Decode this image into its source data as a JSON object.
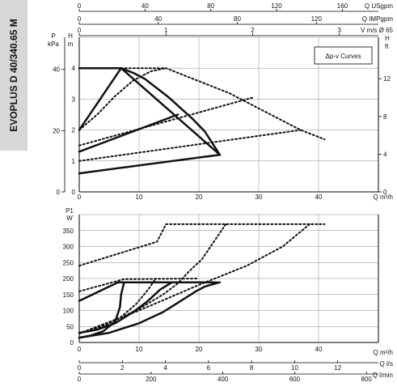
{
  "sidebar_label": "EVOPLUS D 40/340.65 M",
  "chart_data": [
    {
      "type": "line",
      "name": "head-curves",
      "title": "Δp-v Curves",
      "top_axes": [
        {
          "label": "Q USgpm",
          "ticks": [
            0,
            40,
            80,
            120,
            160
          ],
          "range": [
            0,
            181.9
          ]
        },
        {
          "label": "Q IMPgpm",
          "ticks": [
            0,
            40,
            80,
            120
          ],
          "range": [
            0,
            151.4
          ]
        },
        {
          "label": "V m/s Ø 65",
          "ticks": [
            0,
            1,
            2,
            3
          ],
          "range": [
            0,
            3.45
          ]
        }
      ],
      "xlabel": "Q m³/h",
      "xlim": [
        0,
        50
      ],
      "x_ticks": [
        0,
        10,
        20,
        30,
        40
      ],
      "left_axes": [
        {
          "label": "P kPa",
          "ticks": [
            0,
            20,
            40
          ]
        },
        {
          "label": "H m",
          "ticks": [
            0,
            1,
            2,
            3,
            4
          ]
        }
      ],
      "ylim": [
        0,
        5
      ],
      "right_axis": {
        "label": "H ft",
        "ticks": [
          0,
          4,
          8,
          12
        ],
        "range": [
          0,
          16.4
        ]
      },
      "grid": true,
      "series": [
        {
          "style": "solid",
          "points": [
            [
              0,
              4
            ],
            [
              7,
              4
            ],
            [
              23.5,
              1.2
            ],
            [
              0,
              0.6
            ]
          ]
        },
        {
          "style": "solid",
          "points": [
            [
              7,
              4
            ],
            [
              0,
              2
            ]
          ]
        },
        {
          "style": "solid",
          "points": [
            [
              0,
              1.3
            ],
            [
              16.5,
              2.5
            ]
          ]
        },
        {
          "style": "solid",
          "points": [
            [
              7,
              4
            ],
            [
              9,
              3.85
            ],
            [
              11,
              3.65
            ],
            [
              13,
              3.35
            ],
            [
              15,
              3.05
            ],
            [
              17,
              2.7
            ],
            [
              19,
              2.35
            ],
            [
              21,
              1.95
            ],
            [
              23.5,
              1.2
            ]
          ]
        },
        {
          "style": "dotted",
          "points": [
            [
              0,
              2
            ],
            [
              3,
              2.5
            ],
            [
              6,
              3.1
            ],
            [
              9,
              3.6
            ],
            [
              12,
              3.9
            ],
            [
              14.5,
              4
            ]
          ]
        },
        {
          "style": "dotted",
          "points": [
            [
              7,
              4
            ],
            [
              14.5,
              4
            ],
            [
              25,
              3.2
            ],
            [
              37,
              2
            ],
            [
              41,
              1.7
            ]
          ]
        },
        {
          "style": "dotted",
          "points": [
            [
              0,
              1.5
            ],
            [
              29,
              3.05
            ]
          ]
        },
        {
          "style": "dotted",
          "points": [
            [
              0,
              1
            ],
            [
              37,
              2
            ]
          ]
        }
      ]
    },
    {
      "type": "line",
      "name": "power-curves",
      "xlabel": "Q m³/h",
      "xlim": [
        0,
        50
      ],
      "x_ticks": [
        0,
        10,
        20,
        30,
        40
      ],
      "ylabel": "P1 W",
      "ylim": [
        0,
        400
      ],
      "y_ticks": [
        0,
        50,
        100,
        150,
        200,
        250,
        300,
        350
      ],
      "bottom_axes": [
        {
          "label": "Q l/s",
          "ticks": [
            0,
            2,
            4,
            6,
            8,
            10,
            12
          ],
          "range": [
            0,
            13.89
          ]
        },
        {
          "label": "Q l/min",
          "ticks": [
            0,
            200,
            400,
            600,
            800
          ],
          "range": [
            0,
            833.3
          ]
        }
      ],
      "grid": true,
      "series": [
        {
          "style": "solid",
          "points": [
            [
              0,
              130
            ],
            [
              6.5,
              188
            ],
            [
              23,
              188
            ]
          ]
        },
        {
          "style": "solid",
          "points": [
            [
              0,
              15
            ],
            [
              2,
              22
            ],
            [
              4,
              35
            ],
            [
              6,
              65
            ],
            [
              6.8,
              110
            ],
            [
              7,
              150
            ],
            [
              7.5,
              188
            ]
          ]
        },
        {
          "style": "solid",
          "points": [
            [
              0,
              30
            ],
            [
              3,
              40
            ],
            [
              6,
              60
            ],
            [
              9,
              95
            ],
            [
              11.5,
              130
            ],
            [
              13.5,
              165
            ],
            [
              15.5,
              188
            ]
          ]
        },
        {
          "style": "solid",
          "points": [
            [
              0,
              15
            ],
            [
              5,
              30
            ],
            [
              10,
              60
            ],
            [
              14,
              95
            ],
            [
              17,
              130
            ],
            [
              19.5,
              160
            ],
            [
              21,
              175
            ],
            [
              23.5,
              188
            ]
          ]
        },
        {
          "style": "dotted",
          "points": [
            [
              0,
              240
            ],
            [
              13,
              315
            ],
            [
              14.5,
              370
            ],
            [
              41,
              370
            ]
          ]
        },
        {
          "style": "dotted",
          "points": [
            [
              0,
              160
            ],
            [
              7.5,
              198
            ],
            [
              20,
              200
            ]
          ]
        },
        {
          "style": "dotted",
          "points": [
            [
              0,
              30
            ],
            [
              4,
              50
            ],
            [
              7,
              80
            ],
            [
              9.5,
              120
            ],
            [
              11.5,
              165
            ],
            [
              12.8,
              200
            ]
          ]
        },
        {
          "style": "dotted",
          "points": [
            [
              0,
              28
            ],
            [
              5,
              60
            ],
            [
              10,
              105
            ],
            [
              14,
              150
            ],
            [
              16.5,
              185
            ],
            [
              18.5,
              225
            ],
            [
              20.5,
              260
            ],
            [
              24.5,
              370
            ]
          ]
        },
        {
          "style": "dotted",
          "points": [
            [
              0,
              28
            ],
            [
              10,
              100
            ],
            [
              20,
              180
            ],
            [
              28,
              240
            ],
            [
              34,
              300
            ],
            [
              38.5,
              370
            ]
          ]
        }
      ]
    }
  ]
}
